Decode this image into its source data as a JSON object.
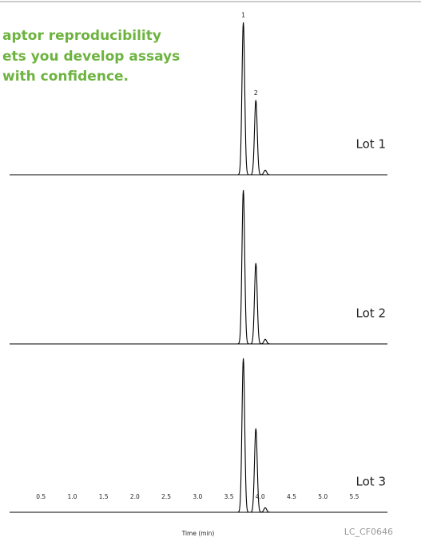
{
  "chart_data": {
    "type": "chromatogram",
    "title": [
      "aptor reproducibility",
      "ets you develop assays",
      "with confidence."
    ],
    "x_label": "Time (min)",
    "figure_code": "LC_CF0646",
    "xlim": [
      0,
      6.03
    ],
    "xticks": [
      0.5,
      {
        "value": 1,
        "label": "1.0"
      },
      1.5,
      {
        "value": 2,
        "label": "2.0"
      },
      2.5,
      {
        "value": 3,
        "label": "3.0"
      },
      3.5,
      {
        "value": 4,
        "label": "4.0"
      },
      4.5,
      {
        "value": 5,
        "label": "5.0"
      },
      5.5
    ],
    "ylim": [
      0,
      110
    ],
    "series": [
      {
        "name": "Lot 1",
        "color": "#000000",
        "x": [
          3.73,
          3.93,
          4.08
        ],
        "values": [
          100,
          49,
          3
        ],
        "labels": [
          "1",
          "2",
          null
        ]
      },
      {
        "name": "Lot 2",
        "color": "#000000",
        "x": [
          3.73,
          3.93,
          4.08
        ],
        "values": [
          101,
          53,
          3
        ]
      },
      {
        "name": "Lot 3",
        "color": "#000000",
        "x": [
          3.73,
          3.93,
          4.08
        ],
        "values": [
          101,
          55,
          3
        ]
      }
    ]
  }
}
